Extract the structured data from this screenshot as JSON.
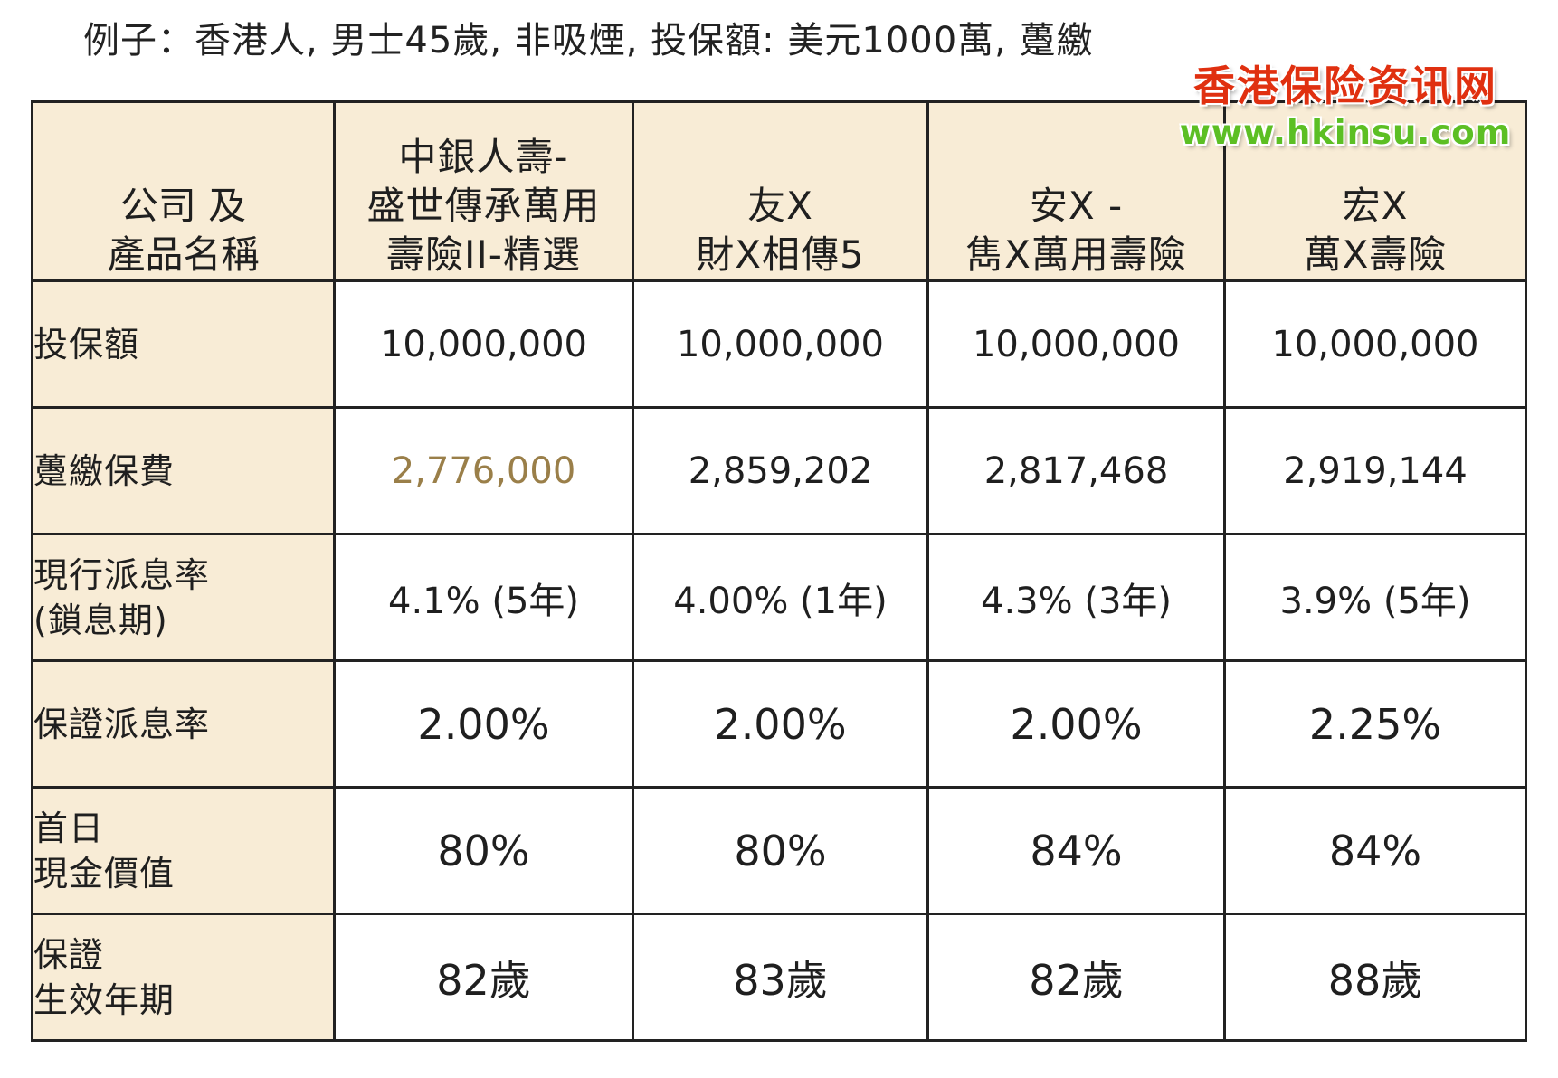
{
  "caption": "例子：香港人, 男士45歲, 非吸煙, 投保額: 美元1000萬, 躉繳",
  "watermark": {
    "title": "香港保险资讯网",
    "url": "www.hkinsu.com",
    "title_color": "#e03010",
    "url_color": "#5cbf24"
  },
  "colors": {
    "header_bg": "#f8ecd6",
    "border": "#222222",
    "highlight_text": "#9a7f49"
  },
  "table": {
    "corner": [
      "公司 及",
      "產品名稱"
    ],
    "products": [
      {
        "name_lines": [
          "中銀人壽-",
          "盛世傳承萬用",
          "壽險II-精選"
        ]
      },
      {
        "name_lines": [
          "友X",
          "財X相傳5"
        ]
      },
      {
        "name_lines": [
          "安X -",
          "雋X萬用壽險"
        ]
      },
      {
        "name_lines": [
          "宏X",
          "萬X壽險"
        ]
      }
    ],
    "rows": [
      {
        "label_lines": [
          "投保額"
        ],
        "values": [
          "10,000,000",
          "10,000,000",
          "10,000,000",
          "10,000,000"
        ]
      },
      {
        "label_lines": [
          "躉繳保費"
        ],
        "values": [
          "2,776,000",
          "2,859,202",
          "2,817,468",
          "2,919,144"
        ]
      },
      {
        "label_lines": [
          "現行派息率",
          "(鎖息期)"
        ],
        "values": [
          "4.1% (5年)",
          "4.00% (1年)",
          "4.3% (3年)",
          "3.9% (5年)"
        ]
      },
      {
        "label_lines": [
          "保證派息率"
        ],
        "values": [
          "2.00%",
          "2.00%",
          "2.00%",
          "2.25%"
        ]
      },
      {
        "label_lines": [
          "首日",
          "現金價值"
        ],
        "values": [
          "80%",
          "80%",
          "84%",
          "84%"
        ]
      },
      {
        "label_lines": [
          "保證",
          "生效年期"
        ],
        "values": [
          "82歲",
          "83歲",
          "82歲",
          "88歲"
        ]
      }
    ]
  }
}
